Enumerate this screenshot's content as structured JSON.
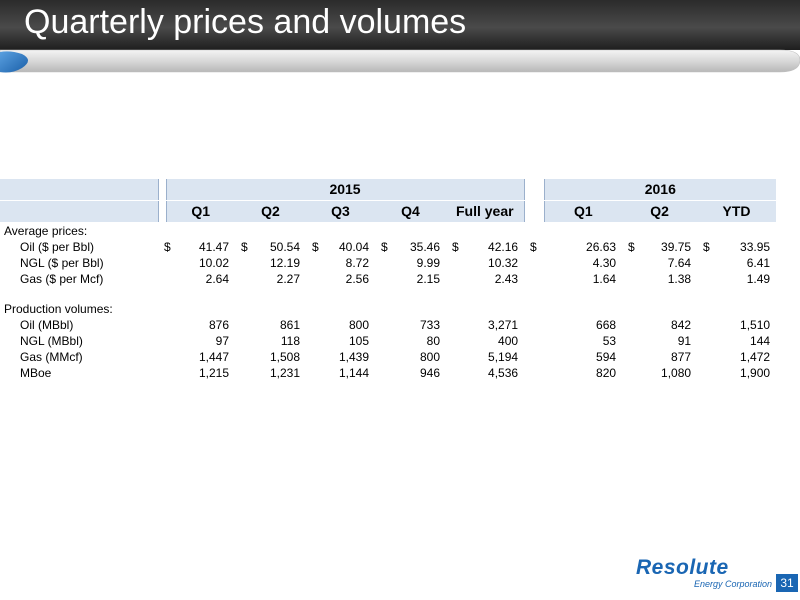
{
  "slide": {
    "title": "Quarterly prices and volumes",
    "page_number": "31"
  },
  "table": {
    "year_2015": "2015",
    "year_2016": "2016",
    "columns_2015": [
      "Q1",
      "Q2",
      "Q3",
      "Q4",
      "Full year"
    ],
    "columns_2016": [
      "Q1",
      "Q2",
      "YTD"
    ],
    "sections": [
      {
        "heading": "Average prices:",
        "rows": [
          {
            "label": "Oil ($ per Bbl)",
            "currency": "$",
            "values": [
              "41.47",
              "50.54",
              "40.04",
              "35.46",
              "42.16",
              "26.63",
              "39.75",
              "33.95"
            ]
          },
          {
            "label": "NGL ($ per Bbl)",
            "currency": "",
            "values": [
              "10.02",
              "12.19",
              "8.72",
              "9.99",
              "10.32",
              "4.30",
              "7.64",
              "6.41"
            ]
          },
          {
            "label": "Gas ($ per Mcf)",
            "currency": "",
            "values": [
              "2.64",
              "2.27",
              "2.56",
              "2.15",
              "2.43",
              "1.64",
              "1.38",
              "1.49"
            ]
          }
        ]
      },
      {
        "heading": "Production volumes:",
        "rows": [
          {
            "label": "Oil (MBbl)",
            "currency": "",
            "values": [
              "876",
              "861",
              "800",
              "733",
              "3,271",
              "668",
              "842",
              "1,510"
            ]
          },
          {
            "label": "NGL (MBbl)",
            "currency": "",
            "values": [
              "97",
              "118",
              "105",
              "80",
              "400",
              "53",
              "91",
              "144"
            ]
          },
          {
            "label": "Gas (MMcf)",
            "currency": "",
            "values": [
              "1,447",
              "1,508",
              "1,439",
              "800",
              "5,194",
              "594",
              "877",
              "1,472"
            ]
          },
          {
            "label": "MBoe",
            "currency": "",
            "values": [
              "1,215",
              "1,231",
              "1,144",
              "946",
              "4,536",
              "820",
              "1,080",
              "1,900"
            ]
          }
        ]
      }
    ]
  },
  "logo": {
    "name": "Resolute",
    "subtitle": "Energy Corporation"
  },
  "colors": {
    "header_fill": "#dbe5f1",
    "brand_blue": "#1a66b3"
  }
}
